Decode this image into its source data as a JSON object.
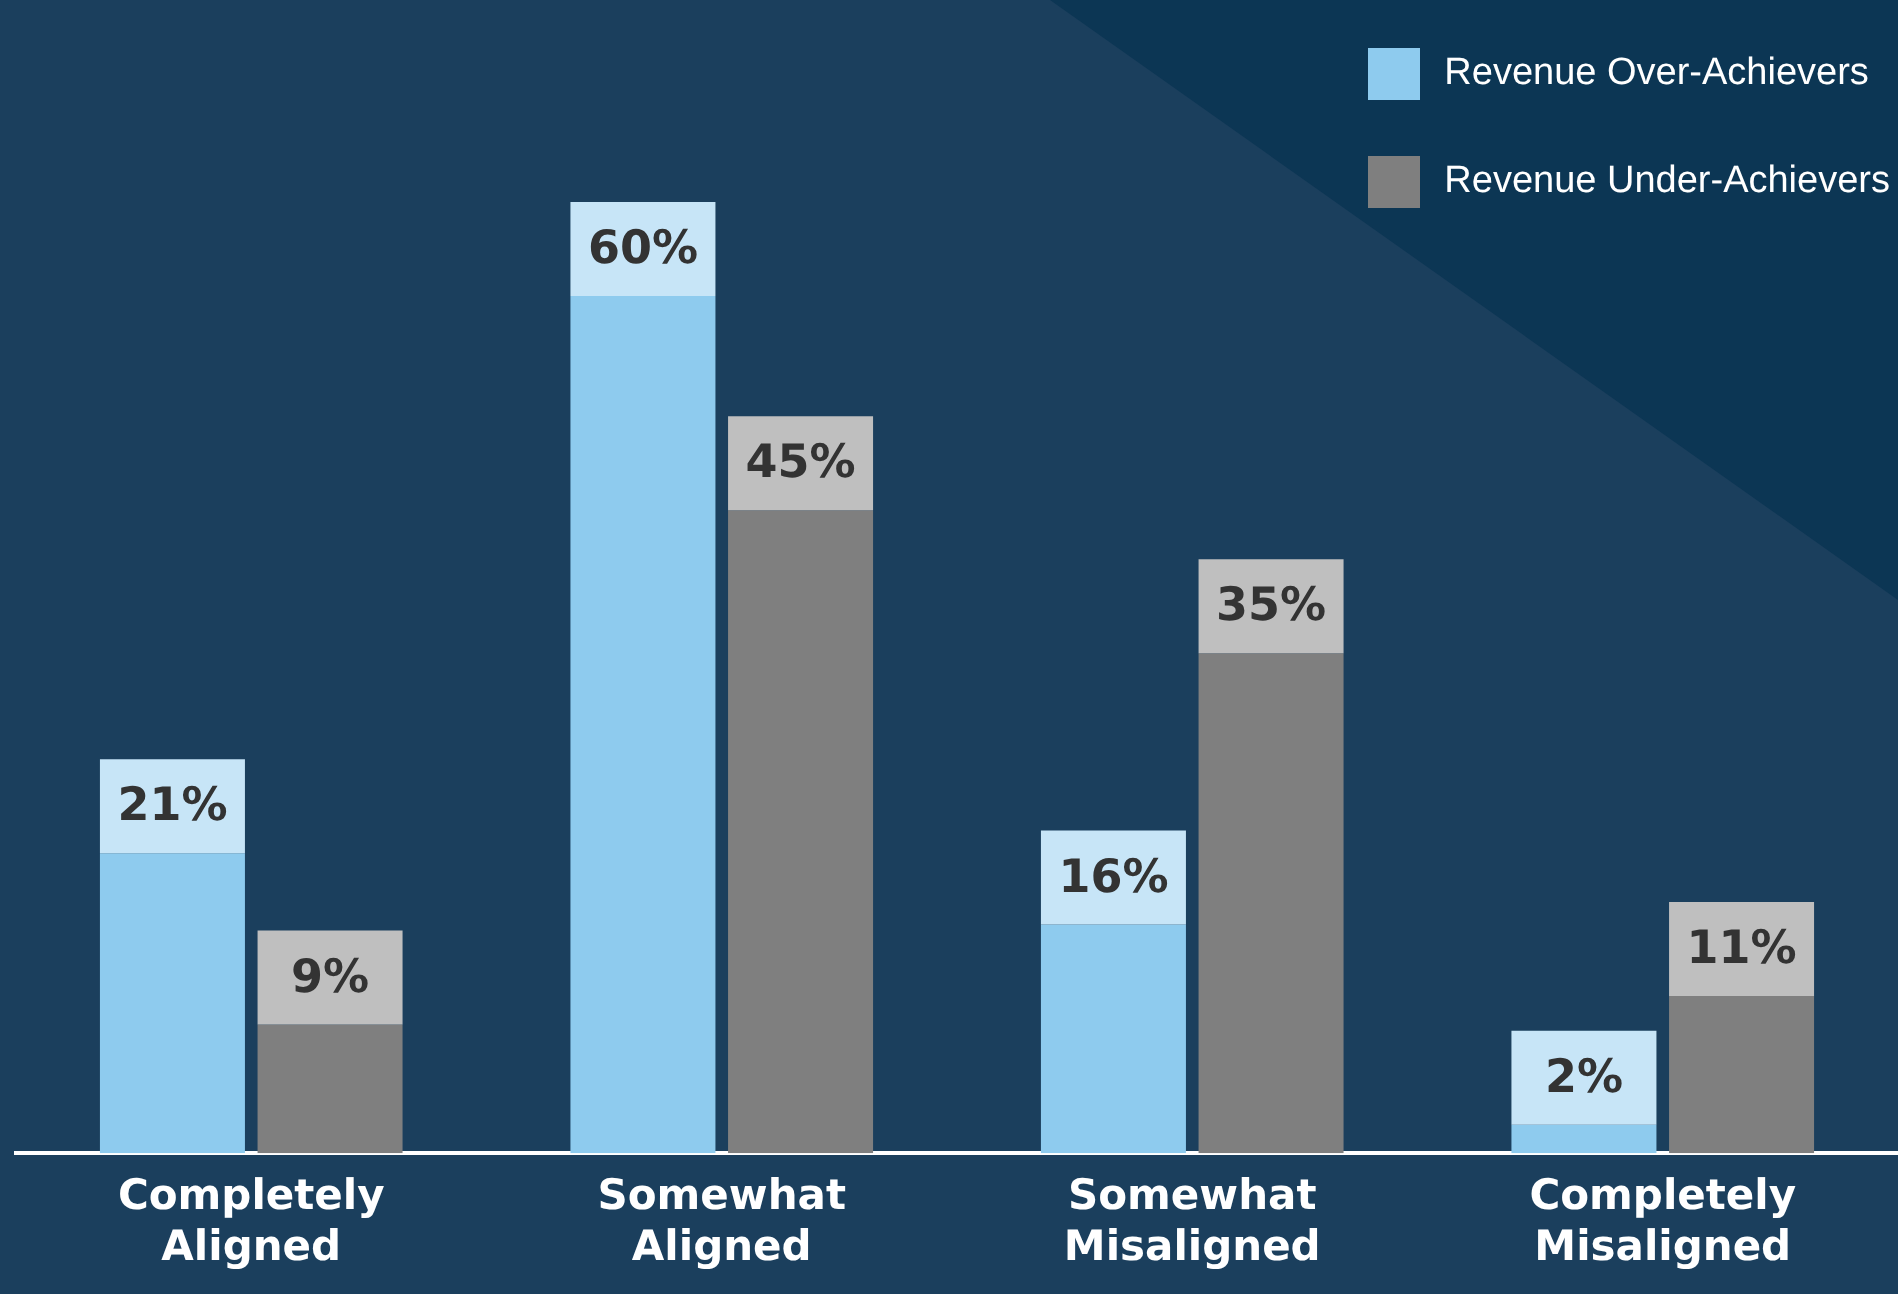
{
  "chart_data": {
    "type": "bar",
    "categories": [
      "Completely Aligned",
      "Somewhat Aligned",
      "Somewhat Misaligned",
      "Completely Misaligned"
    ],
    "series": [
      {
        "name": "Revenue Over-Achievers",
        "color": "#8ecbee",
        "values": [
          21,
          60,
          16,
          2
        ],
        "value_labels": [
          "21%",
          "60%",
          "16%",
          "2%"
        ]
      },
      {
        "name": "Revenue Under-Achievers",
        "color": "#7f7f7f",
        "values": [
          9,
          45,
          35,
          11
        ],
        "value_labels": [
          "9%",
          "45%",
          "35%",
          "11%"
        ]
      }
    ],
    "tick_labels": "x",
    "grid": false,
    "legend": "top right"
  }
}
